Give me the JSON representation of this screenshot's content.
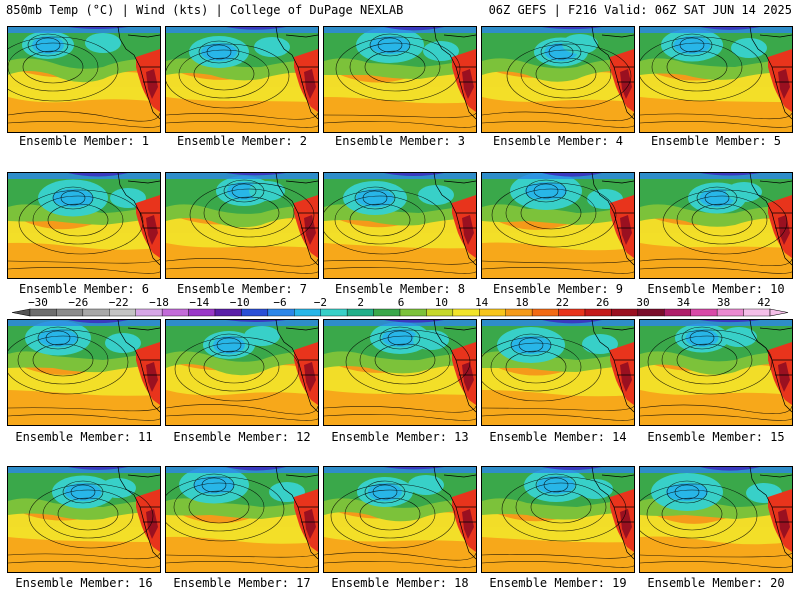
{
  "header": {
    "left": "850mb Temp (°C) | Wind (kts) | College of DuPage NEXLAB",
    "right": "06Z GEFS | F216 Valid: 06Z SAT JUN 14 2025"
  },
  "members": [
    "Ensemble Member: 1",
    "Ensemble Member: 2",
    "Ensemble Member: 3",
    "Ensemble Member: 4",
    "Ensemble Member: 5",
    "Ensemble Member: 6",
    "Ensemble Member: 7",
    "Ensemble Member: 8",
    "Ensemble Member: 9",
    "Ensemble Member: 10",
    "Ensemble Member: 11",
    "Ensemble Member: 12",
    "Ensemble Member: 13",
    "Ensemble Member: 14",
    "Ensemble Member: 15",
    "Ensemble Member: 16",
    "Ensemble Member: 17",
    "Ensemble Member: 18",
    "Ensemble Member: 19",
    "Ensemble Member: 20"
  ],
  "colorbar": {
    "ticks": [
      "−30",
      "−26",
      "−22",
      "−18",
      "−14",
      "−10",
      "−6",
      "−2",
      "2",
      "6",
      "10",
      "14",
      "18",
      "22",
      "26",
      "30",
      "34",
      "38",
      "42"
    ],
    "colors": [
      "#6e6e6e",
      "#8c8c8c",
      "#a8a8a8",
      "#c4c4c4",
      "#d6a6e6",
      "#c36bd9",
      "#9a38c8",
      "#5a1fa8",
      "#2a4fd6",
      "#2c86e8",
      "#28b6e8",
      "#38d0c8",
      "#22b08a",
      "#3aa84a",
      "#7cc23a",
      "#c6d82a",
      "#f2e42a",
      "#f7c51c",
      "#f59a1a",
      "#f26a14",
      "#e8341c",
      "#c41a1a",
      "#9a1020",
      "#7a0c2a",
      "#b01e6a",
      "#d84aa8",
      "#ea8ad0",
      "#f4bfe8"
    ]
  },
  "map_colors": {
    "ocean_warm": "#f59a1a",
    "ocean_orange": "#f7b51c",
    "subtropic_yellow": "#f2e42a",
    "mid_green": "#3aa84a",
    "light_green": "#7cc23a",
    "teal": "#38d0c8",
    "cyan": "#28b6e8",
    "cold_blue": "#2c86e8",
    "deep_blue": "#3a3ac0",
    "land_hot": "#e8341c",
    "land_dark": "#9a1020"
  }
}
